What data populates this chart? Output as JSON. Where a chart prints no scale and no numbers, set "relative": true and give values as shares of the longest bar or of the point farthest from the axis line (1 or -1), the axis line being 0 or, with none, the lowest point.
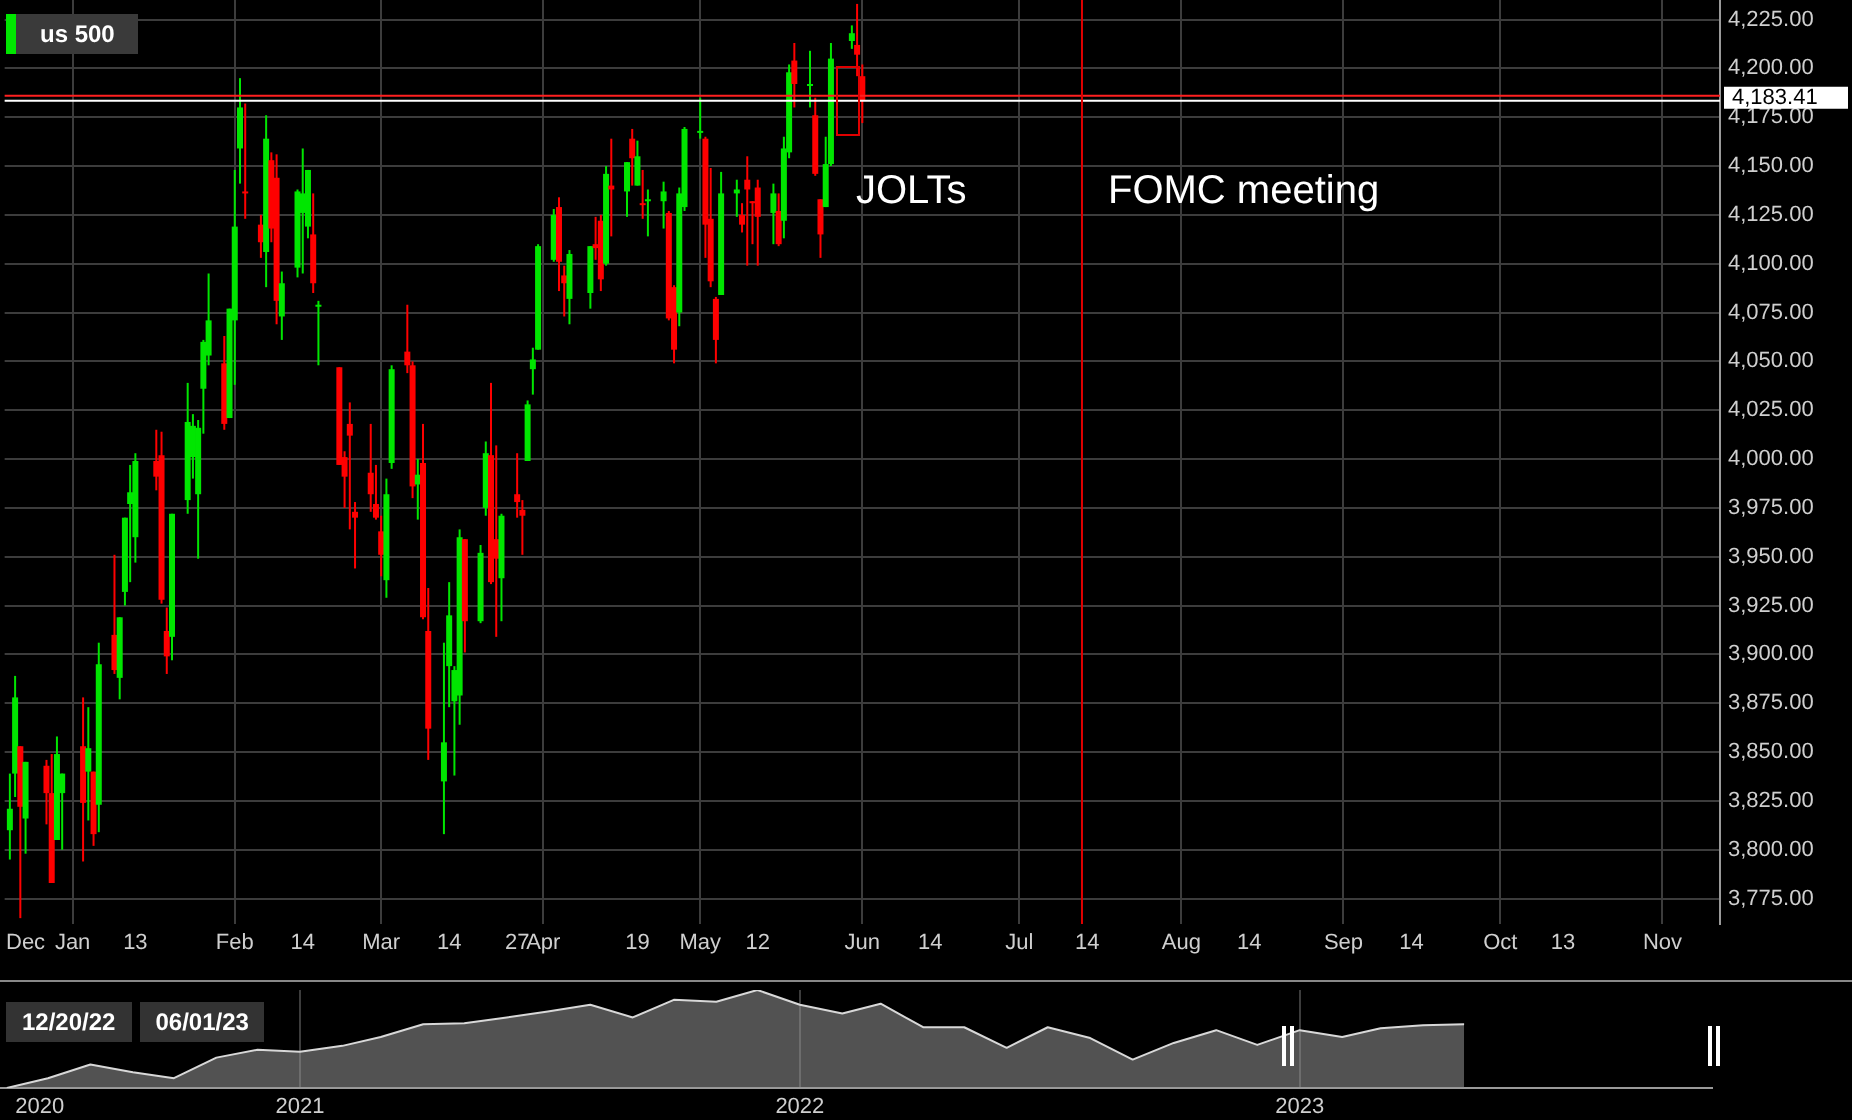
{
  "chart_data": [
    {
      "type": "candlestick",
      "legend": "top left",
      "grid": true,
      "xlim": [
        "2022-12-19",
        "2023-11-12"
      ],
      "xticks": [
        {
          "value": "2022-12-23",
          "label": "Dec"
        },
        {
          "value": "2023-01-01",
          "label": "Jan"
        },
        {
          "value": "2023-01-13",
          "label": "13"
        },
        {
          "value": "2023-02-01",
          "label": "Feb"
        },
        {
          "value": "2023-02-14",
          "label": "14"
        },
        {
          "value": "2023-03-01",
          "label": "Mar"
        },
        {
          "value": "2023-03-14",
          "label": "14"
        },
        {
          "value": "2023-03-27",
          "label": "27"
        },
        {
          "value": "2023-04-01",
          "label": "Apr"
        },
        {
          "value": "2023-04-19",
          "label": "19"
        },
        {
          "value": "2023-05-01",
          "label": "May"
        },
        {
          "value": "2023-05-12",
          "label": "12"
        },
        {
          "value": "2023-06-01",
          "label": "Jun"
        },
        {
          "value": "2023-06-14",
          "label": "14"
        },
        {
          "value": "2023-07-01",
          "label": "Jul"
        },
        {
          "value": "2023-07-14",
          "label": "14"
        },
        {
          "value": "2023-08-01",
          "label": "Aug"
        },
        {
          "value": "2023-08-14",
          "label": "14"
        },
        {
          "value": "2023-09-01",
          "label": "Sep"
        },
        {
          "value": "2023-09-14",
          "label": "14"
        },
        {
          "value": "2023-10-01",
          "label": "Oct"
        },
        {
          "value": "2023-10-13",
          "label": "13"
        },
        {
          "value": "2023-11-01",
          "label": "Nov"
        }
      ],
      "ylim": [
        3762,
        4235
      ],
      "yticks": [
        {
          "value": 3775,
          "label": "3,775.00"
        },
        {
          "value": 3800,
          "label": "3,800.00"
        },
        {
          "value": 3825,
          "label": "3,825.00"
        },
        {
          "value": 3850,
          "label": "3,850.00"
        },
        {
          "value": 3875,
          "label": "3,875.00"
        },
        {
          "value": 3900,
          "label": "3,900.00"
        },
        {
          "value": 3925,
          "label": "3,925.00"
        },
        {
          "value": 3950,
          "label": "3,950.00"
        },
        {
          "value": 3975,
          "label": "3,975.00"
        },
        {
          "value": 4000,
          "label": "4,000.00"
        },
        {
          "value": 4025,
          "label": "4,025.00"
        },
        {
          "value": 4050,
          "label": "4,050.00"
        },
        {
          "value": 4075,
          "label": "4,075.00"
        },
        {
          "value": 4100,
          "label": "4,100.00"
        },
        {
          "value": 4125,
          "label": "4,125.00"
        },
        {
          "value": 4150,
          "label": "4,150.00"
        },
        {
          "value": 4175,
          "label": "4,175.00"
        },
        {
          "value": 4200,
          "label": "4,200.00"
        },
        {
          "value": 4225,
          "label": "4,225.00"
        }
      ],
      "ref_lines": [
        {
          "axis": "y",
          "value": 4186,
          "color": "#ff2020"
        },
        {
          "axis": "y",
          "value": 4183.41,
          "label": "4,183.41",
          "color": "#ffffff"
        },
        {
          "axis": "x",
          "value": "2023-07-13",
          "color": "#e00000"
        }
      ],
      "annotations": [
        "JOLTs",
        "FOMC meeting"
      ],
      "series": [
        {
          "name": "us 500",
          "type": "candlestick",
          "color": "#00e600",
          "x": [
            "2022-12-20",
            "2022-12-21",
            "2022-12-22",
            "2022-12-23",
            "2022-12-27",
            "2022-12-28",
            "2022-12-29",
            "2022-12-30",
            "2023-01-03",
            "2023-01-04",
            "2023-01-05",
            "2023-01-06",
            "2023-01-09",
            "2023-01-10",
            "2023-01-11",
            "2023-01-12",
            "2023-01-13",
            "2023-01-17",
            "2023-01-18",
            "2023-01-19",
            "2023-01-20",
            "2023-01-23",
            "2023-01-24",
            "2023-01-25",
            "2023-01-26",
            "2023-01-27",
            "2023-01-30",
            "2023-01-31",
            "2023-02-01",
            "2023-02-02",
            "2023-02-03",
            "2023-02-06",
            "2023-02-07",
            "2023-02-08",
            "2023-02-09",
            "2023-02-10",
            "2023-02-13",
            "2023-02-14",
            "2023-02-15",
            "2023-02-16",
            "2023-02-17",
            "2023-02-21",
            "2023-02-22",
            "2023-02-23",
            "2023-02-24",
            "2023-02-27",
            "2023-02-28",
            "2023-03-01",
            "2023-03-02",
            "2023-03-03",
            "2023-03-06",
            "2023-03-07",
            "2023-03-08",
            "2023-03-09",
            "2023-03-10",
            "2023-03-13",
            "2023-03-14",
            "2023-03-15",
            "2023-03-16",
            "2023-03-17",
            "2023-03-20",
            "2023-03-21",
            "2023-03-22",
            "2023-03-23",
            "2023-03-24",
            "2023-03-27",
            "2023-03-28",
            "2023-03-29",
            "2023-03-30",
            "2023-03-31",
            "2023-04-03",
            "2023-04-04",
            "2023-04-05",
            "2023-04-06",
            "2023-04-10",
            "2023-04-11",
            "2023-04-12",
            "2023-04-13",
            "2023-04-14",
            "2023-04-17",
            "2023-04-18",
            "2023-04-19",
            "2023-04-20",
            "2023-04-21",
            "2023-04-24",
            "2023-04-25",
            "2023-04-26",
            "2023-04-27",
            "2023-04-28",
            "2023-05-01",
            "2023-05-02",
            "2023-05-03",
            "2023-05-04",
            "2023-05-05",
            "2023-05-08",
            "2023-05-09",
            "2023-05-10",
            "2023-05-11",
            "2023-05-12",
            "2023-05-15",
            "2023-05-16",
            "2023-05-17",
            "2023-05-18",
            "2023-05-19",
            "2023-05-22",
            "2023-05-23",
            "2023-05-24",
            "2023-05-25",
            "2023-05-26",
            "2023-05-30",
            "2023-05-31",
            "2023-06-01"
          ],
          "ohlc": [
            [
              3810,
              3839,
              3795,
              3821
            ],
            [
              3839,
              3889,
              3827,
              3878
            ],
            [
              3853,
              3853,
              3765,
              3822
            ],
            [
              3816,
              3845,
              3798,
              3845
            ],
            [
              3843,
              3846,
              3813,
              3829
            ],
            [
              3829,
              3849,
              3783,
              3783
            ],
            [
              3805,
              3858,
              3805,
              3849
            ],
            [
              3829,
              3839,
              3800,
              3839
            ],
            [
              3853,
              3878,
              3794,
              3824
            ],
            [
              3840,
              3873,
              3815,
              3852
            ],
            [
              3840,
              3840,
              3802,
              3808
            ],
            [
              3823,
              3906,
              3809,
              3895
            ],
            [
              3910,
              3951,
              3890,
              3892
            ],
            [
              3888,
              3919,
              3877,
              3919
            ],
            [
              3932,
              3970,
              3925,
              3970
            ],
            [
              3977,
              3997,
              3937,
              3983
            ],
            [
              3960,
              4003,
              3947,
              3999
            ],
            [
              3999,
              4015,
              3984,
              3991
            ],
            [
              4002,
              4014,
              3926,
              3928
            ],
            [
              3912,
              3924,
              3890,
              3899
            ],
            [
              3909,
              3972,
              3897,
              3972
            ],
            [
              3979,
              4039,
              3972,
              4019
            ],
            [
              4001,
              4023,
              3990,
              4017
            ],
            [
              3982,
              4020,
              3949,
              4016
            ],
            [
              4036,
              4061,
              4013,
              4060
            ],
            [
              4053,
              4095,
              4048,
              4071
            ],
            [
              4049,
              4063,
              4015,
              4018
            ],
            [
              4021,
              4077,
              4021,
              4077
            ],
            [
              4071,
              4148,
              4038,
              4119
            ],
            [
              4159,
              4195,
              4141,
              4180
            ],
            [
              4137,
              4182,
              4123,
              4136
            ],
            [
              4120,
              4125,
              4103,
              4111
            ],
            [
              4106,
              4176,
              4088,
              4164
            ],
            [
              4153,
              4157,
              4111,
              4118
            ],
            [
              4144,
              4156,
              4069,
              4081
            ],
            [
              4073,
              4096,
              4061,
              4090
            ],
            [
              4098,
              4138,
              4093,
              4137
            ],
            [
              4126,
              4159,
              4095,
              4136
            ],
            [
              4119,
              4148,
              4113,
              4148
            ],
            [
              4115,
              4136,
              4085,
              4090
            ],
            [
              4078,
              4081,
              4048,
              4079
            ],
            [
              4047,
              4047,
              3997,
              3997
            ],
            [
              4001,
              4004,
              3975,
              3991
            ],
            [
              4018,
              4029,
              3964,
              4012
            ],
            [
              3973,
              3978,
              3944,
              3970
            ],
            [
              3993,
              4018,
              3973,
              3982
            ],
            [
              3977,
              3997,
              3969,
              3970
            ],
            [
              3963,
              3971,
              3940,
              3951
            ],
            [
              3938,
              3990,
              3929,
              3982
            ],
            [
              3998,
              4048,
              3995,
              4046
            ],
            [
              4055,
              4079,
              4044,
              4048
            ],
            [
              4048,
              4050,
              3980,
              3986
            ],
            [
              3987,
              4000,
              3969,
              3992
            ],
            [
              3998,
              4018,
              3918,
              3919
            ],
            [
              3912,
              3934,
              3846,
              3862
            ],
            [
              3835,
              3906,
              3808,
              3855
            ],
            [
              3894,
              3937,
              3873,
              3920
            ],
            [
              3876,
              3894,
              3838,
              3892
            ],
            [
              3879,
              3964,
              3864,
              3960
            ],
            [
              3959,
              3959,
              3901,
              3917
            ],
            [
              3917,
              3956,
              3916,
              3952
            ],
            [
              3975,
              4009,
              3971,
              4003
            ],
            [
              4002,
              4039,
              3936,
              3937
            ],
            [
              3959,
              4007,
              3909,
              3949
            ],
            [
              3939,
              3972,
              3917,
              3971
            ],
            [
              3982,
              4003,
              3970,
              3978
            ],
            [
              3974,
              3979,
              3951,
              3971
            ],
            [
              3999,
              4030,
              3999,
              4028
            ],
            [
              4046,
              4057,
              4033,
              4051
            ],
            [
              4056,
              4110,
              4056,
              4109
            ],
            [
              4102,
              4128,
              4101,
              4125
            ],
            [
              4129,
              4134,
              4086,
              4101
            ],
            [
              4094,
              4099,
              4073,
              4090
            ],
            [
              4082,
              4107,
              4069,
              4105
            ],
            [
              4085,
              4109,
              4077,
              4109
            ],
            [
              4110,
              4124,
              4102,
              4108
            ],
            [
              4122,
              4125,
              4086,
              4092
            ],
            [
              4100,
              4150,
              4099,
              4146
            ],
            [
              4140,
              4164,
              4114,
              4138
            ],
            [
              4137,
              4152,
              4124,
              4152
            ],
            [
              4164,
              4169,
              4140,
              4154
            ],
            [
              4140,
              4163,
              4140,
              4155
            ],
            [
              4131,
              4148,
              4123,
              4130
            ],
            [
              4133,
              4138,
              4114,
              4133
            ],
            [
              4132,
              4142,
              4118,
              4137
            ],
            [
              4126,
              4127,
              4071,
              4072
            ],
            [
              4088,
              4089,
              4049,
              4056
            ],
            [
              4075,
              4139,
              4068,
              4136
            ],
            [
              4129,
              4170,
              4127,
              4169
            ],
            [
              4167,
              4185,
              4164,
              4168
            ],
            [
              4164,
              4165,
              4103,
              4120
            ],
            [
              4123,
              4149,
              4088,
              4091
            ],
            [
              4082,
              4083,
              4049,
              4061
            ],
            [
              4084,
              4147,
              4084,
              4136
            ],
            [
              4136,
              4143,
              4124,
              4138
            ],
            [
              4125,
              4131,
              4116,
              4120
            ],
            [
              4143,
              4155,
              4099,
              4138
            ],
            [
              4132,
              4132,
              4110,
              4131
            ],
            [
              4139,
              4143,
              4099,
              4124
            ],
            [
              4126,
              4141,
              4110,
              4136
            ],
            [
              4127,
              4136,
              4109,
              4110
            ],
            [
              4122,
              4165,
              4113,
              4159
            ],
            [
              4157,
              4202,
              4154,
              4198
            ],
            [
              4204,
              4213,
              4180,
              4192
            ],
            [
              4191,
              4209,
              4180,
              4192
            ],
            [
              4176,
              4185,
              4145,
              4146
            ],
            [
              4133,
              4133,
              4103,
              4115
            ],
            [
              4129,
              4165,
              4129,
              4151
            ],
            [
              4151,
              4213,
              4150,
              4205
            ],
            [
              4214,
              4222,
              4210,
              4218
            ],
            [
              4212,
              4233,
              4196,
              4207
            ],
            [
              4196,
              4202,
              4172,
              4183.41
            ]
          ],
          "colors": [
            "#00e600",
            "#00e600",
            "#ff0000",
            "#00e600",
            "#ff0000",
            "#ff0000",
            "#00e600",
            "#00e600",
            "#ff0000",
            "#00e600",
            "#ff0000",
            "#00e600",
            "#ff0000",
            "#00e600",
            "#00e600",
            "#00e600",
            "#00e600",
            "#ff0000",
            "#ff0000",
            "#ff0000",
            "#00e600",
            "#00e600",
            "#00e600",
            "#00e600",
            "#00e600",
            "#00e600",
            "#ff0000",
            "#00e600",
            "#00e600",
            "#00e600",
            "#ff0000",
            "#ff0000",
            "#00e600",
            "#ff0000",
            "#ff0000",
            "#00e600",
            "#00e600",
            "#00e600",
            "#00e600",
            "#ff0000",
            "#00e600",
            "#ff0000",
            "#ff0000",
            "#ff0000",
            "#ff0000",
            "#ff0000",
            "#ff0000",
            "#ff0000",
            "#00e600",
            "#00e600",
            "#ff0000",
            "#ff0000",
            "#00e600",
            "#ff0000",
            "#ff0000",
            "#00e600",
            "#00e600",
            "#00e600",
            "#00e600",
            "#ff0000",
            "#00e600",
            "#00e600",
            "#ff0000",
            "#ff0000",
            "#00e600",
            "#ff0000",
            "#ff0000",
            "#00e600",
            "#00e600",
            "#00e600",
            "#00e600",
            "#ff0000",
            "#ff0000",
            "#00e600",
            "#00e600",
            "#ff0000",
            "#ff0000",
            "#00e600",
            "#ff0000",
            "#00e600",
            "#ff0000",
            "#00e600",
            "#ff0000",
            "#00e600",
            "#00e600",
            "#ff0000",
            "#ff0000",
            "#00e600",
            "#00e600",
            "#00e600",
            "#ff0000",
            "#ff0000",
            "#ff0000",
            "#00e600",
            "#00e600",
            "#ff0000",
            "#ff0000",
            "#ff0000",
            "#ff0000",
            "#00e600",
            "#ff0000",
            "#00e600",
            "#00e600",
            "#ff0000",
            "#00e600",
            "#ff0000",
            "#ff0000",
            "#00e600",
            "#00e600",
            "#00e600",
            "#ff0000",
            "#ff0000"
          ]
        }
      ]
    },
    {
      "type": "area",
      "relative": true,
      "grid": "x",
      "xlim": [
        "2020-05-27",
        "2023-10-29"
      ],
      "xticks": [
        {
          "value": "2020-06-25",
          "label": "2020"
        },
        {
          "value": "2021-01-01",
          "label": "2021"
        },
        {
          "value": "2022-01-01",
          "label": "2022"
        },
        {
          "value": "2023-01-01",
          "label": "2023"
        }
      ],
      "annotations": [
        "12/20/22",
        "06/01/23"
      ],
      "series": [
        {
          "color": "#d8d8d8",
          "x": [
            "2020-06",
            "2020-07",
            "2020-08",
            "2020-09",
            "2020-10",
            "2020-11",
            "2020-12",
            "2021-01",
            "2021-02",
            "2021-03",
            "2021-04",
            "2021-05",
            "2021-06",
            "2021-07",
            "2021-08",
            "2021-09",
            "2021-10",
            "2021-11",
            "2021-12",
            "2022-01",
            "2022-02",
            "2022-03",
            "2022-04",
            "2022-05",
            "2022-06",
            "2022-07",
            "2022-08",
            "2022-09",
            "2022-10",
            "2022-11",
            "2022-12",
            "2023-01",
            "2023-02",
            "2023-03",
            "2023-04",
            "2023-05"
          ],
          "values": [
            0,
            0.1,
            0.24,
            0.16,
            0.1,
            0.31,
            0.39,
            0.37,
            0.43,
            0.52,
            0.65,
            0.66,
            0.72,
            0.78,
            0.85,
            0.72,
            0.9,
            0.88,
            1,
            0.85,
            0.76,
            0.86,
            0.62,
            0.62,
            0.41,
            0.62,
            0.51,
            0.29,
            0.46,
            0.59,
            0.44,
            0.59,
            0.52,
            0.61,
            0.64,
            0.65
          ]
        }
      ]
    }
  ]
}
